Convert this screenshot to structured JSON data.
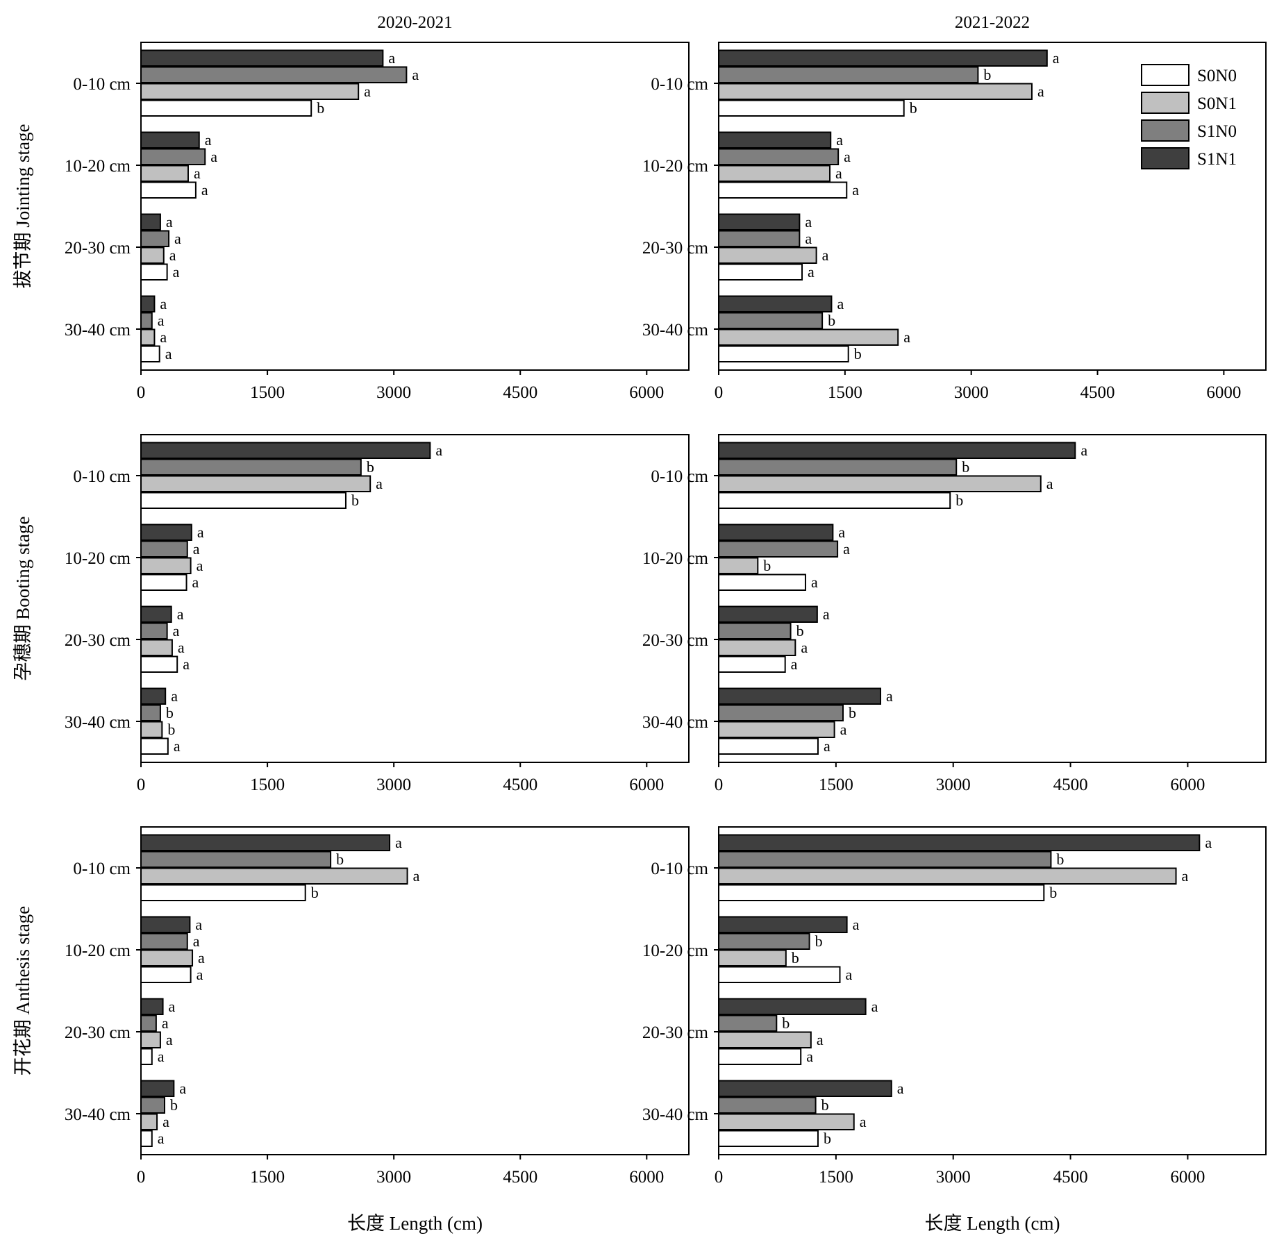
{
  "column_titles": [
    "2020-2021",
    "2021-2022"
  ],
  "row_titles": [
    "拔节期 Jointing stage",
    "孕穗期 Booting stage",
    "开花期 Anthesis stage"
  ],
  "x_axis_titles": [
    "长度 Length (cm)",
    "长度 Length (cm)"
  ],
  "legend": [
    {
      "name": "S0N0",
      "color": "#ffffff"
    },
    {
      "name": "S0N1",
      "color": "#c0c0c0"
    },
    {
      "name": "S1N0",
      "color": "#7f7f7f"
    },
    {
      "name": "S1N1",
      "color": "#3f3f3f"
    }
  ],
  "chart_data": [
    {
      "type": "bar",
      "orientation": "horizontal",
      "column": "2020-2021",
      "row": "拔节期 Jointing stage",
      "categories": [
        "0-10 cm",
        "10-20 cm",
        "20-30 cm",
        "30-40 cm"
      ],
      "xlim": [
        0,
        6500
      ],
      "xticks": [
        0,
        1500,
        3000,
        4500,
        6000
      ],
      "series": [
        {
          "name": "S0N0",
          "values": [
            2020,
            650,
            310,
            220
          ],
          "labels": [
            "b",
            "a",
            "a",
            "a"
          ]
        },
        {
          "name": "S0N1",
          "values": [
            2580,
            560,
            270,
            160
          ],
          "labels": [
            "a",
            "a",
            "a",
            "a"
          ]
        },
        {
          "name": "S1N0",
          "values": [
            3150,
            760,
            330,
            130
          ],
          "labels": [
            "a",
            "a",
            "a",
            "a"
          ]
        },
        {
          "name": "S1N1",
          "values": [
            2870,
            690,
            230,
            160
          ],
          "labels": [
            "a",
            "a",
            "a",
            "a"
          ]
        }
      ]
    },
    {
      "type": "bar",
      "orientation": "horizontal",
      "column": "2021-2022",
      "row": "拔节期 Jointing stage",
      "categories": [
        "0-10 cm",
        "10-20 cm",
        "20-30 cm",
        "30-40 cm"
      ],
      "xlim": [
        0,
        6500
      ],
      "xticks": [
        0,
        1500,
        3000,
        4500,
        6000
      ],
      "series": [
        {
          "name": "S0N0",
          "values": [
            2200,
            1520,
            990,
            1540
          ],
          "labels": [
            "b",
            "a",
            "a",
            "b"
          ]
        },
        {
          "name": "S0N1",
          "values": [
            3720,
            1320,
            1160,
            2130
          ],
          "labels": [
            "a",
            "a",
            "a",
            "a"
          ]
        },
        {
          "name": "S1N0",
          "values": [
            3080,
            1420,
            960,
            1230
          ],
          "labels": [
            "b",
            "a",
            "a",
            "b"
          ]
        },
        {
          "name": "S1N1",
          "values": [
            3900,
            1330,
            960,
            1340
          ],
          "labels": [
            "a",
            "a",
            "a",
            "a"
          ]
        }
      ]
    },
    {
      "type": "bar",
      "orientation": "horizontal",
      "column": "2020-2021",
      "row": "孕穗期 Booting stage",
      "categories": [
        "0-10 cm",
        "10-20 cm",
        "20-30 cm",
        "30-40 cm"
      ],
      "xlim": [
        0,
        6500
      ],
      "xticks": [
        0,
        1500,
        3000,
        4500,
        6000
      ],
      "series": [
        {
          "name": "S0N0",
          "values": [
            2430,
            540,
            430,
            320
          ],
          "labels": [
            "b",
            "a",
            "a",
            "a"
          ]
        },
        {
          "name": "S0N1",
          "values": [
            2720,
            590,
            370,
            250
          ],
          "labels": [
            "a",
            "a",
            "a",
            "b"
          ]
        },
        {
          "name": "S1N0",
          "values": [
            2610,
            550,
            310,
            230
          ],
          "labels": [
            "b",
            "a",
            "a",
            "b"
          ]
        },
        {
          "name": "S1N1",
          "values": [
            3430,
            600,
            360,
            290
          ],
          "labels": [
            "a",
            "a",
            "a",
            "a"
          ]
        }
      ]
    },
    {
      "type": "bar",
      "orientation": "horizontal",
      "column": "2021-2022",
      "row": "孕穗期 Booting stage",
      "categories": [
        "0-10 cm",
        "10-20 cm",
        "20-30 cm",
        "30-40 cm"
      ],
      "xlim": [
        0,
        7000
      ],
      "xticks": [
        0,
        1500,
        3000,
        4500,
        6000
      ],
      "series": [
        {
          "name": "S0N0",
          "values": [
            2960,
            1110,
            850,
            1270
          ],
          "labels": [
            "b",
            "a",
            "a",
            "a"
          ]
        },
        {
          "name": "S0N1",
          "values": [
            4120,
            500,
            980,
            1480
          ],
          "labels": [
            "a",
            "b",
            "a",
            "a"
          ]
        },
        {
          "name": "S1N0",
          "values": [
            3040,
            1520,
            920,
            1590
          ],
          "labels": [
            "b",
            "a",
            "b",
            "b"
          ]
        },
        {
          "name": "S1N1",
          "values": [
            4560,
            1460,
            1260,
            2070
          ],
          "labels": [
            "a",
            "a",
            "a",
            "a"
          ]
        }
      ]
    },
    {
      "type": "bar",
      "orientation": "horizontal",
      "column": "2020-2021",
      "row": "开花期 Anthesis stage",
      "categories": [
        "0-10 cm",
        "10-20 cm",
        "20-30 cm",
        "30-40 cm"
      ],
      "xlim": [
        0,
        6500
      ],
      "xticks": [
        0,
        1500,
        3000,
        4500,
        6000
      ],
      "series": [
        {
          "name": "S0N0",
          "values": [
            1950,
            590,
            130,
            130
          ],
          "labels": [
            "b",
            "a",
            "a",
            "a"
          ]
        },
        {
          "name": "S0N1",
          "values": [
            3160,
            610,
            230,
            190
          ],
          "labels": [
            "a",
            "a",
            "a",
            "a"
          ]
        },
        {
          "name": "S1N0",
          "values": [
            2250,
            550,
            180,
            280
          ],
          "labels": [
            "b",
            "a",
            "a",
            "b"
          ]
        },
        {
          "name": "S1N1",
          "values": [
            2950,
            580,
            260,
            390
          ],
          "labels": [
            "a",
            "a",
            "a",
            "a"
          ]
        }
      ]
    },
    {
      "type": "bar",
      "orientation": "horizontal",
      "column": "2021-2022",
      "row": "开花期 Anthesis stage",
      "categories": [
        "0-10 cm",
        "10-20 cm",
        "20-30 cm",
        "30-40 cm"
      ],
      "xlim": [
        0,
        7000
      ],
      "xticks": [
        0,
        1500,
        3000,
        4500,
        6000
      ],
      "series": [
        {
          "name": "S0N0",
          "values": [
            4160,
            1550,
            1050,
            1270
          ],
          "labels": [
            "b",
            "a",
            "a",
            "b"
          ]
        },
        {
          "name": "S0N1",
          "values": [
            5850,
            860,
            1180,
            1730
          ],
          "labels": [
            "a",
            "b",
            "a",
            "a"
          ]
        },
        {
          "name": "S1N0",
          "values": [
            4250,
            1160,
            740,
            1240
          ],
          "labels": [
            "b",
            "b",
            "b",
            "b"
          ]
        },
        {
          "name": "S1N1",
          "values": [
            6150,
            1640,
            1880,
            2210
          ],
          "labels": [
            "a",
            "a",
            "a",
            "a"
          ]
        }
      ]
    }
  ]
}
